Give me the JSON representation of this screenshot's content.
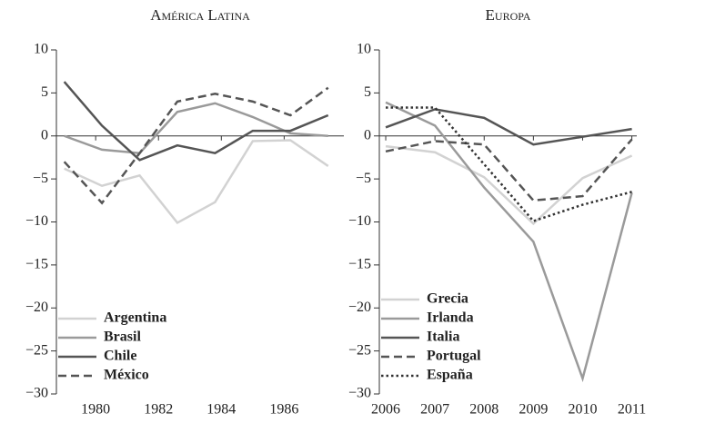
{
  "chart_data": [
    {
      "type": "line",
      "title": "América Latina",
      "xlim": [
        1978.75,
        1987.9
      ],
      "xticks": [
        1980,
        1982,
        1984,
        1986
      ],
      "ylim": [
        -30,
        10
      ],
      "yticks": [
        {
          "value": -30,
          "label": "−30"
        },
        {
          "value": -25,
          "label": "−25"
        },
        {
          "value": -20,
          "label": "−20"
        },
        {
          "value": -15,
          "label": "−15"
        },
        {
          "value": -10,
          "label": "−10"
        },
        {
          "value": -5,
          "label": "−5"
        },
        0,
        5,
        10
      ],
      "legend": "lower left",
      "x": [
        1979.0,
        1980.2,
        1981.4,
        1982.6,
        1983.8,
        1985.0,
        1986.2,
        1987.4
      ],
      "series": [
        {
          "name": "Argentina",
          "color": "#d2d2d2",
          "style": "solid",
          "values": [
            -3.8,
            -5.8,
            -4.6,
            -10.1,
            -7.7,
            -0.6,
            -0.5,
            -3.5
          ]
        },
        {
          "name": "Brasil",
          "color": "#9a9a9a",
          "style": "solid",
          "values": [
            0,
            -1.6,
            -2.0,
            2.8,
            3.8,
            2.2,
            0.3,
            0.0
          ]
        },
        {
          "name": "Chile",
          "color": "#555555",
          "style": "solid",
          "values": [
            6.3,
            1.2,
            -2.8,
            -1.1,
            -2.0,
            0.6,
            0.6,
            2.4
          ]
        },
        {
          "name": "México",
          "color": "#555555",
          "style": "dashed",
          "values": [
            -3.0,
            -7.8,
            -2.0,
            4.0,
            4.9,
            4.0,
            2.4,
            5.6
          ]
        }
      ]
    },
    {
      "type": "line",
      "title": "Europa",
      "xlim": [
        2005.87,
        2011.1
      ],
      "xticks": [
        2006,
        2007,
        2008,
        2009,
        2010,
        2011
      ],
      "ylim": [
        -30,
        10
      ],
      "yticks": [
        {
          "value": -30,
          "label": "−30"
        },
        {
          "value": -25,
          "label": "−25"
        },
        {
          "value": -20,
          "label": "−20"
        },
        {
          "value": -15,
          "label": "−15"
        },
        {
          "value": -10,
          "label": "−10"
        },
        {
          "value": -5,
          "label": "−5"
        },
        0,
        5,
        10
      ],
      "legend": "lower left",
      "x": [
        2006,
        2007,
        2008,
        2009,
        2010,
        2011
      ],
      "series": [
        {
          "name": "Grecia",
          "color": "#d2d2d2",
          "style": "solid",
          "values": [
            -1.2,
            -1.9,
            -4.8,
            -10.2,
            -4.9,
            -2.3
          ]
        },
        {
          "name": "Irlanda",
          "color": "#9a9a9a",
          "style": "solid",
          "values": [
            3.9,
            1.2,
            -6.0,
            -12.3,
            -28.2,
            -6.6
          ]
        },
        {
          "name": "Italia",
          "color": "#555555",
          "style": "solid",
          "values": [
            1.0,
            3.1,
            2.1,
            -1.0,
            -0.1,
            0.8
          ]
        },
        {
          "name": "Portugal",
          "color": "#555555",
          "style": "dashed",
          "values": [
            -1.8,
            -0.6,
            -1.0,
            -7.5,
            -7.0,
            -0.4
          ]
        },
        {
          "name": "España",
          "color": "#333333",
          "style": "dotted",
          "values": [
            3.3,
            3.3,
            -3.3,
            -9.9,
            -8.0,
            -6.5
          ]
        }
      ]
    }
  ]
}
